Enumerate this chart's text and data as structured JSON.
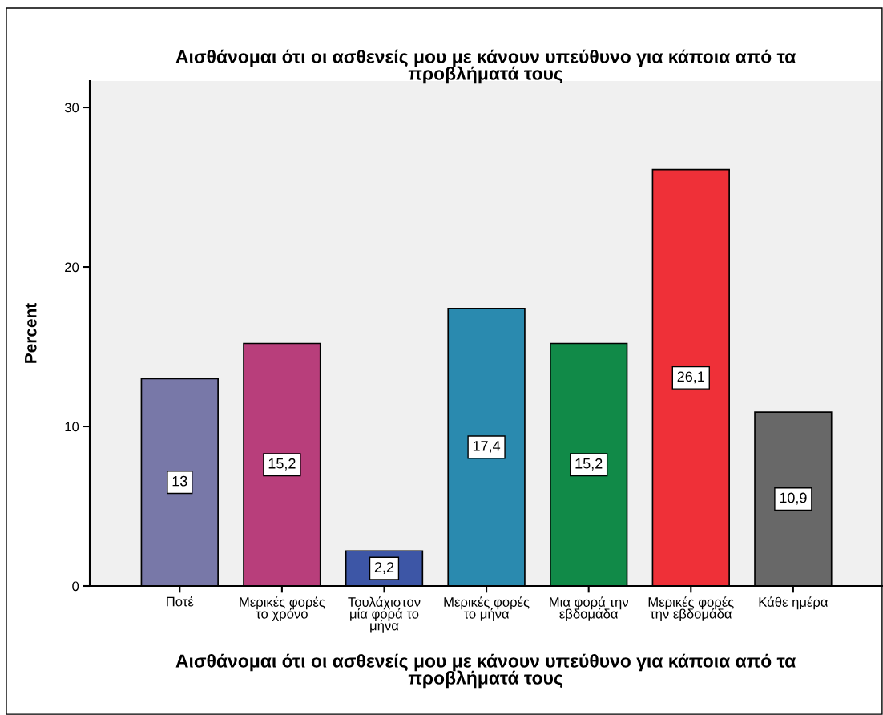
{
  "chart_data": {
    "type": "bar",
    "title": "Αισθάνομαι ότι οι ασθενείς μου με κάνουν υπεύθυνο για κάποια από τα\nπροβλήματά τους",
    "xlabel": "Αισθάνομαι ότι οι ασθενείς μου με κάνουν υπεύθυνο για κάποια από τα\nπροβλήματά τους",
    "ylabel": "Percent",
    "categories": [
      "Ποτέ",
      "Μερικές φορές\nτο χρόνο",
      "Τουλάχιστον\nμία φορά το\nμήνα",
      "Μερικές φορές\nτο μήνα",
      "Μια φορά την\nεβδομάδα",
      "Μερικές φορές\nτην εβδομάδα",
      "Κάθε ημέρα"
    ],
    "values": [
      13,
      15.2,
      2.2,
      17.4,
      15.2,
      26.1,
      10.9
    ],
    "value_labels": [
      "13",
      "15,2",
      "2,2",
      "17,4",
      "15,2",
      "26,1",
      "10,9"
    ],
    "colors": [
      "#7878a8",
      "#b83e7b",
      "#3d56a6",
      "#2a8aaf",
      "#118a48",
      "#ef3038",
      "#686868"
    ],
    "ylim": [
      0,
      31.66
    ],
    "yticks": [
      0,
      10,
      20,
      30
    ]
  }
}
